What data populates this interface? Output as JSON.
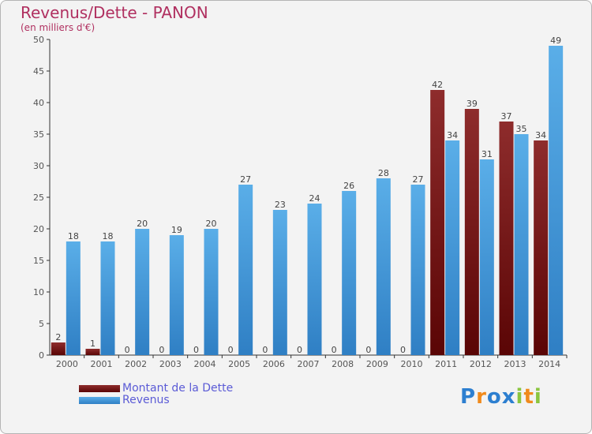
{
  "header": {
    "title": "Revenus/Dette - PANON",
    "subtitle": "(en milliers d'€)"
  },
  "legend": {
    "items": [
      {
        "label": "Montant de la Dette",
        "color": "#6b0f0f"
      },
      {
        "label": "Revenus",
        "color": "#4a9fe0"
      }
    ]
  },
  "logo": {
    "letters": [
      "P",
      "r",
      "o",
      "x",
      "i",
      "t",
      "i"
    ],
    "colors": [
      "#2d7fd0",
      "#f08a1c",
      "#2d7fd0",
      "#2d7fd0",
      "#8bc53f",
      "#f08a1c",
      "#8bc53f"
    ]
  },
  "chart_data": {
    "type": "bar",
    "title": "Revenus/Dette - PANON",
    "subtitle": "(en milliers d'€)",
    "categories": [
      "2000",
      "2001",
      "2002",
      "2003",
      "2004",
      "2005",
      "2006",
      "2007",
      "2008",
      "2009",
      "2010",
      "2011",
      "2012",
      "2013",
      "2014"
    ],
    "series": [
      {
        "name": "Montant de la Dette",
        "color": "#7a1a1a",
        "values": [
          2,
          1,
          0,
          0,
          0,
          0,
          0,
          0,
          0,
          0,
          0,
          42,
          39,
          37,
          34
        ]
      },
      {
        "name": "Revenus",
        "color": "#4a9fe0",
        "values": [
          18,
          18,
          20,
          19,
          20,
          27,
          23,
          24,
          26,
          28,
          27,
          34,
          31,
          35,
          49
        ]
      }
    ],
    "ylim": [
      0,
      50
    ],
    "yticks": [
      0,
      5,
      10,
      15,
      20,
      25,
      30,
      35,
      40,
      45,
      50
    ],
    "grid": false,
    "legend_position": "bottom-left"
  }
}
